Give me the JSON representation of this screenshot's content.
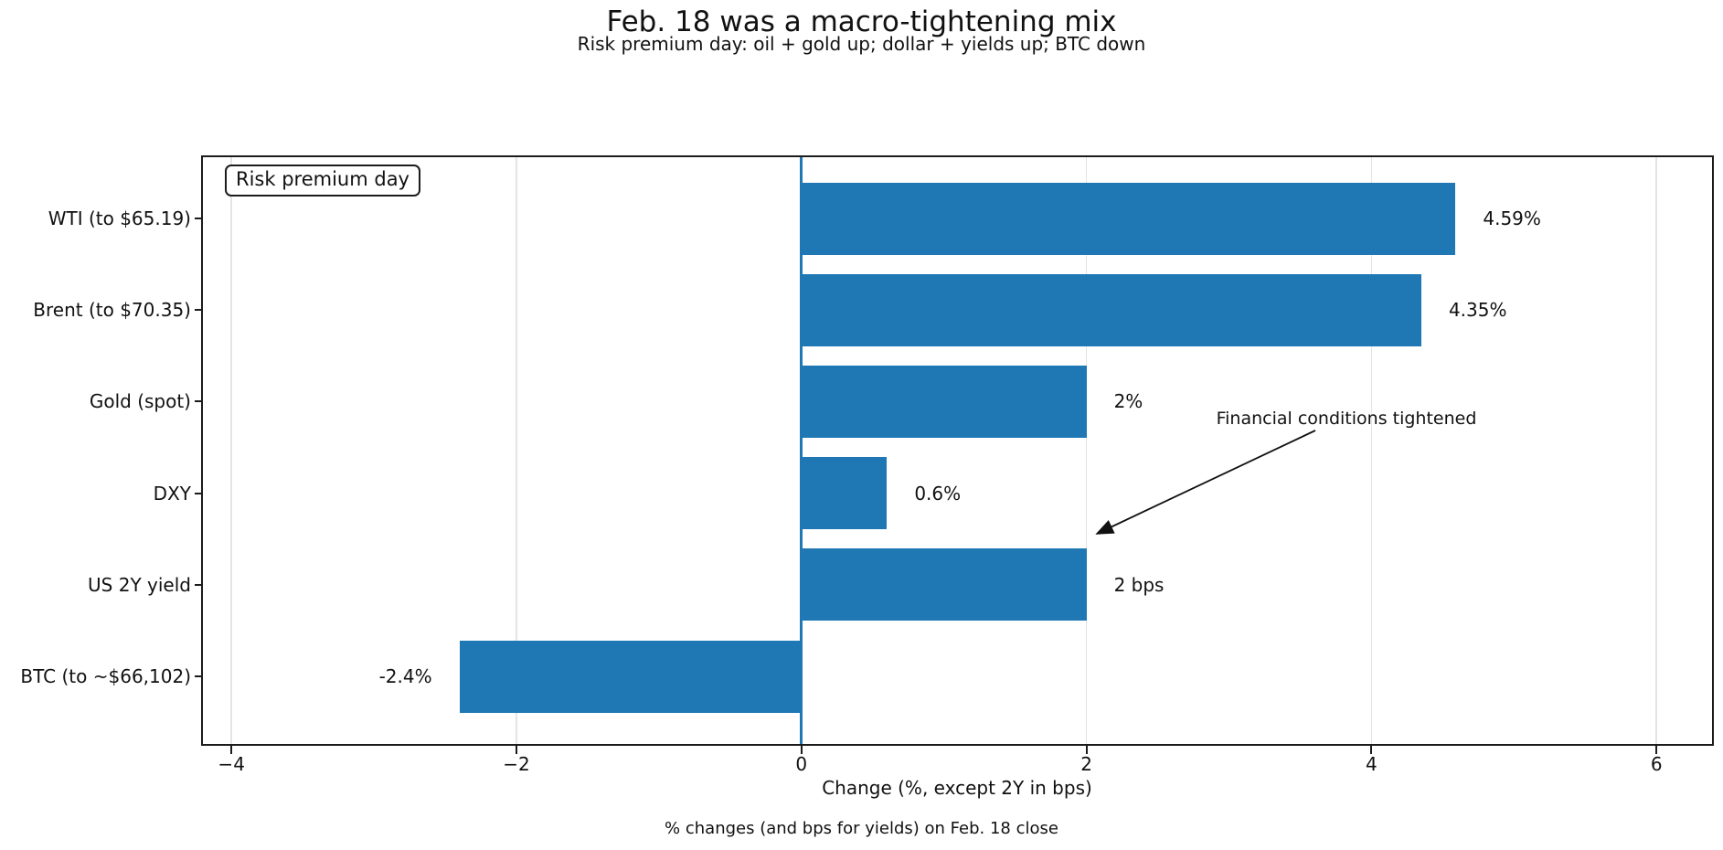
{
  "page": {
    "title": "Feb. 18 was a macro-tightening mix",
    "subtitle": "Risk premium day: oil + gold up; dollar + yields up; BTC down",
    "footnote": "% changes (and bps for yields) on Feb. 18 close"
  },
  "chart_data": {
    "type": "bar",
    "orientation": "horizontal",
    "title": "Feb. 18 was a macro-tightening mix",
    "subtitle": "Risk premium day: oil + gold up; dollar + yields up; BTC down",
    "xlabel": "Change (%, except 2Y in bps)",
    "footnote": "% changes (and bps for yields) on Feb. 18 close",
    "legend_label": "Risk premium day",
    "annotation": {
      "text": "Financial conditions tightened"
    },
    "categories": [
      "WTI (to $65.19)",
      "Brent (to $70.35)",
      "Gold (spot)",
      "DXY",
      "US 2Y yield",
      "BTC (to ~$66,102)"
    ],
    "values": [
      4.59,
      4.35,
      2.0,
      0.6,
      2.0,
      -2.4
    ],
    "value_labels": [
      "4.59%",
      "4.35%",
      "2%",
      "0.6%",
      "2 bps",
      "-2.4%"
    ],
    "units": [
      "%",
      "%",
      "%",
      "%",
      "bps",
      "%"
    ],
    "xlim": [
      -4.2,
      6.39
    ],
    "xticks": [
      {
        "value": -4,
        "label": "−4"
      },
      {
        "value": -2,
        "label": "−2"
      },
      {
        "value": 0,
        "label": "0"
      },
      {
        "value": 2,
        "label": "2"
      },
      {
        "value": 4,
        "label": "4"
      },
      {
        "value": 6,
        "label": "6"
      }
    ],
    "grid": true,
    "legend_position": "upper-left",
    "bar_color": "#1f77b4",
    "zero_line_color": "#1f77b4",
    "grid_color": "#e4e4e4",
    "spine_color": "#1c1c1c"
  }
}
